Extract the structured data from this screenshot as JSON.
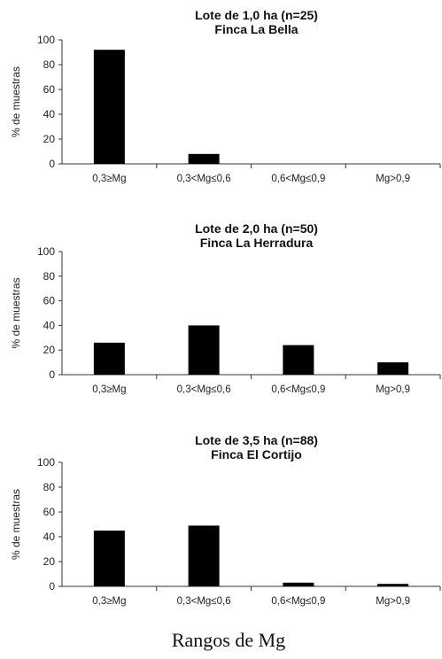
{
  "xlabel": "Rangos de Mg",
  "chart_data": [
    {
      "type": "bar",
      "title": "Lote de 1,0 ha (n=25)",
      "subtitle": "Finca La Bella",
      "ylabel": "% de muestras",
      "ylim": [
        0,
        100
      ],
      "yticks": [
        0,
        20,
        40,
        60,
        80,
        100
      ],
      "categories": [
        "0,3≥Mg",
        "0,3<Mg≤0,6",
        "0,6<Mg≤0,9",
        "Mg>0,9"
      ],
      "values": [
        92,
        8,
        0,
        0
      ],
      "grid": false,
      "bar_color": "#000000"
    },
    {
      "type": "bar",
      "title": "Lote de 2,0 ha (n=50)",
      "subtitle": "Finca La Herradura",
      "ylabel": "% de muestras",
      "ylim": [
        0,
        100
      ],
      "yticks": [
        0,
        20,
        40,
        60,
        80,
        100
      ],
      "categories": [
        "0,3≥Mg",
        "0,3<Mg≤0,6",
        "0,6<Mg≤0,9",
        "Mg>0,9"
      ],
      "values": [
        26,
        40,
        24,
        10
      ],
      "grid": false,
      "bar_color": "#000000"
    },
    {
      "type": "bar",
      "title": "Lote de 3,5 ha (n=88)",
      "subtitle": "Finca El Cortijo",
      "ylabel": "% de muestras",
      "ylim": [
        0,
        100
      ],
      "yticks": [
        0,
        20,
        40,
        60,
        80,
        100
      ],
      "categories": [
        "0,3≥Mg",
        "0,3<Mg≤0,6",
        "0,6<Mg≤0,9",
        "Mg>0,9"
      ],
      "values": [
        45,
        49,
        3,
        2
      ],
      "grid": false,
      "bar_color": "#000000"
    }
  ]
}
